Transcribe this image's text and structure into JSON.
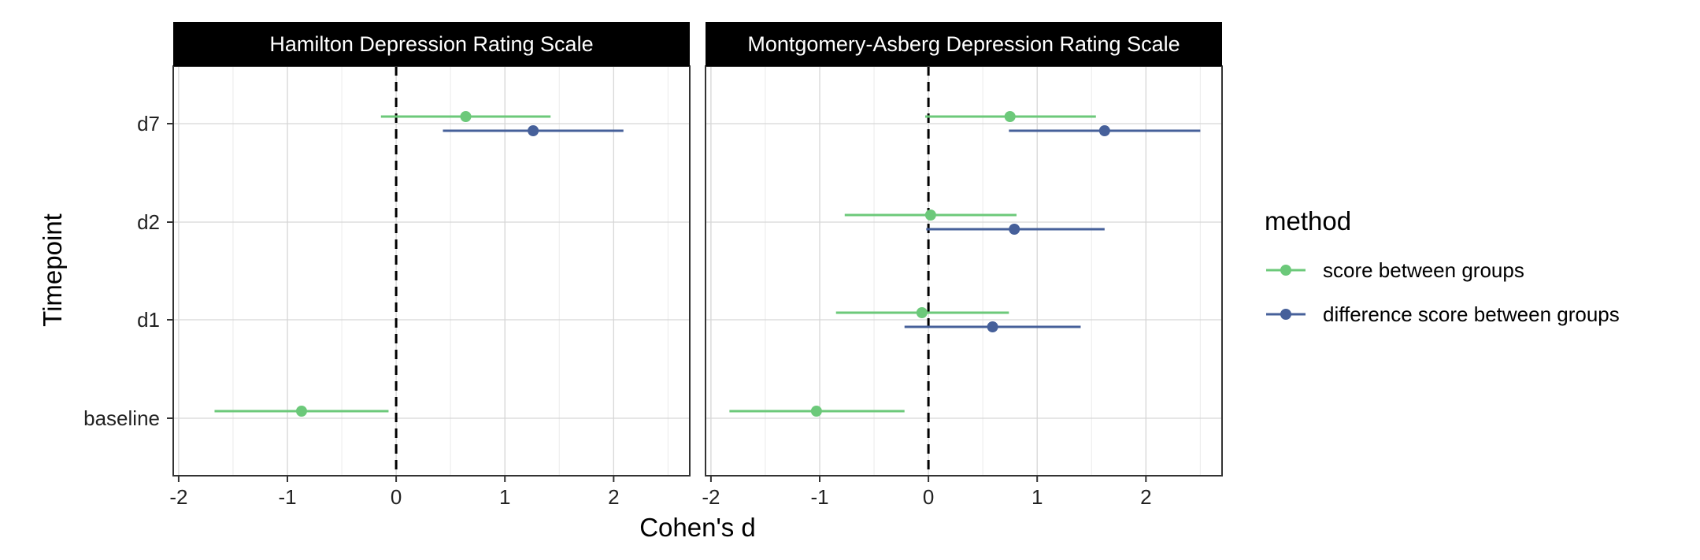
{
  "chart_data": {
    "type": "scatter",
    "subtype": "forest-plot-with-error-bars",
    "xlabel": "Cohen's d",
    "ylabel": "Timepoint",
    "xlim": [
      -2.05,
      2.7
    ],
    "x_ticks": [
      -2,
      -1,
      0,
      1,
      2
    ],
    "y_categories": [
      "baseline",
      "d1",
      "d2",
      "d7"
    ],
    "reference_line": {
      "x": 0,
      "style": "dashed"
    },
    "grid": true,
    "legend": {
      "title": "method",
      "placement": "right",
      "entries": [
        {
          "name": "score between groups",
          "color": "#6cc97a"
        },
        {
          "name": "difference score between groups",
          "color": "#46609a"
        }
      ]
    },
    "panels": [
      {
        "title": "Hamilton Depression Rating Scale",
        "series": [
          {
            "name": "score between groups",
            "color": "#6cc97a",
            "points": [
              {
                "y": "baseline",
                "estimate": -0.87,
                "lower": -1.67,
                "upper": -0.07
              },
              {
                "y": "d7",
                "estimate": 0.64,
                "lower": -0.14,
                "upper": 1.42
              }
            ]
          },
          {
            "name": "difference score between groups",
            "color": "#46609a",
            "points": [
              {
                "y": "d7",
                "estimate": 1.26,
                "lower": 0.43,
                "upper": 2.09
              }
            ]
          }
        ]
      },
      {
        "title": "Montgomery-Asberg Depression Rating Scale",
        "series": [
          {
            "name": "score between groups",
            "color": "#6cc97a",
            "points": [
              {
                "y": "baseline",
                "estimate": -1.03,
                "lower": -1.83,
                "upper": -0.22
              },
              {
                "y": "d1",
                "estimate": -0.06,
                "lower": -0.85,
                "upper": 0.74
              },
              {
                "y": "d2",
                "estimate": 0.02,
                "lower": -0.77,
                "upper": 0.81
              },
              {
                "y": "d7",
                "estimate": 0.75,
                "lower": -0.03,
                "upper": 1.54
              }
            ]
          },
          {
            "name": "difference score between groups",
            "color": "#46609a",
            "points": [
              {
                "y": "d1",
                "estimate": 0.59,
                "lower": -0.22,
                "upper": 1.4
              },
              {
                "y": "d2",
                "estimate": 0.79,
                "lower": -0.02,
                "upper": 1.62
              },
              {
                "y": "d7",
                "estimate": 1.62,
                "lower": 0.74,
                "upper": 2.5
              }
            ]
          }
        ]
      }
    ]
  }
}
